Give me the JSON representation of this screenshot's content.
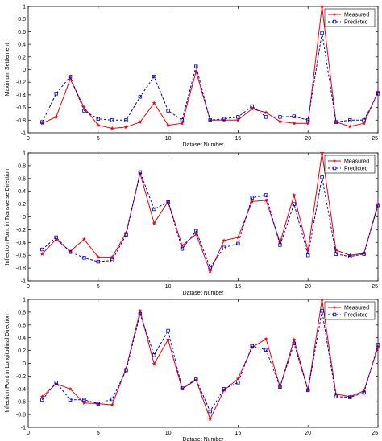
{
  "chart_data": [
    {
      "type": "line",
      "xlabel": "Dataset Number",
      "ylabel": "Maximum Settlement",
      "xlim": [
        0,
        25
      ],
      "ylim": [
        -1,
        1
      ],
      "xticks": [
        "0",
        "5",
        "10",
        "15",
        "20",
        "25"
      ],
      "yticks": [
        "-1",
        "-0.8",
        "-0.6",
        "-0.4",
        "-0.2",
        "0",
        "0.2",
        "0.4",
        "0.6",
        "0.8",
        "1"
      ],
      "grid": false,
      "legend_position": "top-right",
      "x": [
        1,
        2,
        3,
        4,
        5,
        6,
        7,
        8,
        9,
        10,
        11,
        12,
        13,
        14,
        15,
        16,
        17,
        18,
        19,
        20,
        21,
        22,
        23,
        24,
        25
      ],
      "series": [
        {
          "name": "Measured",
          "color": "#e8000b",
          "marker": "star",
          "values": [
            -0.85,
            -0.75,
            -0.15,
            -0.6,
            -0.88,
            -0.93,
            -0.91,
            -0.83,
            -0.53,
            -0.88,
            -0.85,
            -0.03,
            -0.8,
            -0.8,
            -0.8,
            -0.62,
            -0.68,
            -0.82,
            -0.85,
            -0.85,
            1.0,
            -0.83,
            -0.9,
            -0.85,
            -0.35
          ]
        },
        {
          "name": "Predicted",
          "color": "#0000cc",
          "marker": "square",
          "values": [
            -0.83,
            -0.38,
            -0.11,
            -0.65,
            -0.78,
            -0.8,
            -0.8,
            -0.43,
            -0.11,
            -0.65,
            -0.8,
            0.05,
            -0.8,
            -0.78,
            -0.75,
            -0.58,
            -0.75,
            -0.75,
            -0.74,
            -0.8,
            0.58,
            -0.83,
            -0.8,
            -0.8,
            -0.38
          ]
        }
      ]
    },
    {
      "type": "line",
      "xlabel": "Dataset Number",
      "ylabel": "Inflection Point in Transverse Direction",
      "xlim": [
        0,
        25
      ],
      "ylim": [
        -1,
        1
      ],
      "xticks": [
        "0",
        "5",
        "10",
        "15",
        "20",
        "25"
      ],
      "yticks": [
        "-1",
        "-0.8",
        "-0.6",
        "-0.4",
        "-0.2",
        "0",
        "0.2",
        "0.4",
        "0.6",
        "0.8",
        "1"
      ],
      "grid": false,
      "legend_position": "top-right",
      "x": [
        1,
        2,
        3,
        4,
        5,
        6,
        7,
        8,
        9,
        10,
        11,
        12,
        13,
        14,
        15,
        16,
        17,
        18,
        19,
        20,
        21,
        22,
        23,
        24,
        25
      ],
      "series": [
        {
          "name": "Measured",
          "color": "#e8000b",
          "marker": "star",
          "values": [
            -0.58,
            -0.35,
            -0.54,
            -0.35,
            -0.63,
            -0.63,
            -0.25,
            0.68,
            -0.1,
            0.24,
            -0.45,
            -0.27,
            -0.85,
            -0.37,
            -0.32,
            0.24,
            0.26,
            -0.4,
            0.34,
            -0.53,
            1.0,
            -0.52,
            -0.6,
            -0.57,
            0.2
          ]
        },
        {
          "name": "Predicted",
          "color": "#0000cc",
          "marker": "square",
          "values": [
            -0.51,
            -0.32,
            -0.55,
            -0.64,
            -0.7,
            -0.68,
            -0.28,
            0.7,
            0.12,
            0.23,
            -0.5,
            -0.22,
            -0.79,
            -0.48,
            -0.42,
            0.3,
            0.34,
            -0.44,
            0.2,
            -0.6,
            0.62,
            -0.58,
            -0.62,
            -0.58,
            0.18
          ]
        }
      ]
    },
    {
      "type": "line",
      "xlabel": "Dataset Number",
      "ylabel": "Inflection Point in Longitudinal Direction",
      "xlim": [
        0,
        25
      ],
      "ylim": [
        -1,
        1
      ],
      "xticks": [
        "0",
        "5",
        "10",
        "15",
        "20",
        "25"
      ],
      "yticks": [
        "-1",
        "-0.8",
        "-0.6",
        "-0.4",
        "-0.2",
        "0",
        "0.2",
        "0.4",
        "0.6",
        "0.8",
        "1"
      ],
      "grid": false,
      "legend_position": "top-right",
      "x": [
        1,
        2,
        3,
        4,
        5,
        6,
        7,
        8,
        9,
        10,
        11,
        12,
        13,
        14,
        15,
        16,
        17,
        18,
        19,
        20,
        21,
        22,
        23,
        24,
        25
      ],
      "series": [
        {
          "name": "Measured",
          "color": "#e8000b",
          "marker": "star",
          "values": [
            -0.52,
            -0.32,
            -0.4,
            -0.62,
            -0.63,
            -0.65,
            -0.08,
            0.82,
            -0.01,
            0.37,
            -0.4,
            -0.26,
            -0.87,
            -0.42,
            -0.24,
            0.25,
            0.38,
            -0.37,
            0.37,
            -0.42,
            1.0,
            -0.48,
            -0.52,
            -0.43,
            0.25
          ]
        },
        {
          "name": "Predicted",
          "color": "#0000cc",
          "marker": "square",
          "values": [
            -0.57,
            -0.3,
            -0.57,
            -0.57,
            -0.63,
            -0.56,
            -0.11,
            0.77,
            0.13,
            0.51,
            -0.39,
            -0.25,
            -0.75,
            -0.4,
            -0.3,
            0.27,
            0.21,
            -0.37,
            0.31,
            -0.42,
            0.82,
            -0.52,
            -0.53,
            -0.46,
            0.29
          ]
        }
      ]
    }
  ]
}
